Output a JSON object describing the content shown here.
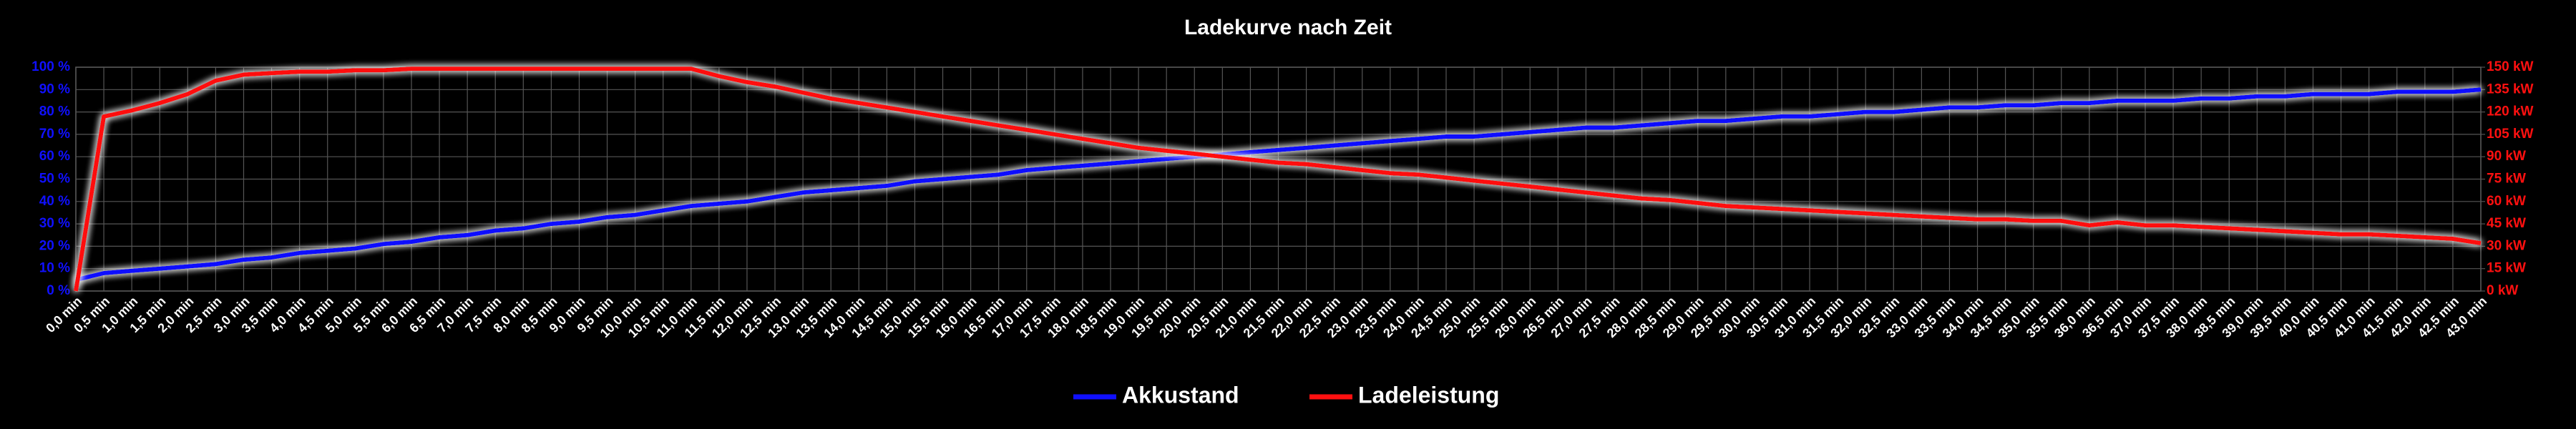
{
  "chart_data": {
    "type": "line",
    "title": "Ladekurve nach Zeit",
    "categories": [
      "0,0 min",
      "0,5 min",
      "1,0 min",
      "1,5 min",
      "2,0 min",
      "2,5 min",
      "3,0 min",
      "3,5 min",
      "4,0 min",
      "4,5 min",
      "5,0 min",
      "5,5 min",
      "6,0 min",
      "6,5 min",
      "7,0 min",
      "7,5 min",
      "8,0 min",
      "8,5 min",
      "9,0 min",
      "9,5 min",
      "10,0 min",
      "10,5 min",
      "11,0 min",
      "11,5 min",
      "12,0 min",
      "12,5 min",
      "13,0 min",
      "13,5 min",
      "14,0 min",
      "14,5 min",
      "15,0 min",
      "15,5 min",
      "16,0 min",
      "16,5 min",
      "17,0 min",
      "17,5 min",
      "18,0 min",
      "18,5 min",
      "19,0 min",
      "19,5 min",
      "20,0 min",
      "20,5 min",
      "21,0 min",
      "21,5 min",
      "22,0 min",
      "22,5 min",
      "23,0 min",
      "23,5 min",
      "24,0 min",
      "24,5 min",
      "25,0 min",
      "25,5 min",
      "26,0 min",
      "26,5 min",
      "27,0 min",
      "27,5 min",
      "28,0 min",
      "28,5 min",
      "29,0 min",
      "29,5 min",
      "30,0 min",
      "30,5 min",
      "31,0 min",
      "31,5 min",
      "32,0 min",
      "32,5 min",
      "33,0 min",
      "33,5 min",
      "34,0 min",
      "34,5 min",
      "35,0 min",
      "35,5 min",
      "36,0 min",
      "36,5 min",
      "37,0 min",
      "37,5 min",
      "38,0 min",
      "38,5 min",
      "39,0 min",
      "39,5 min",
      "40,0 min",
      "40,5 min",
      "41,0 min",
      "41,5 min",
      "42,0 min",
      "42,5 min",
      "43,0 min"
    ],
    "series": [
      {
        "name": "Akkustand",
        "color": "#1010ff",
        "values": [
          5,
          8,
          9,
          10,
          11,
          12,
          14,
          15,
          17,
          18,
          19,
          21,
          22,
          24,
          25,
          27,
          28,
          30,
          31,
          33,
          34,
          36,
          38,
          39,
          40,
          42,
          44,
          45,
          46,
          47,
          49,
          50,
          51,
          52,
          54,
          55,
          56,
          57,
          58,
          59,
          60,
          61,
          62,
          63,
          64,
          65,
          66,
          67,
          68,
          69,
          69,
          70,
          71,
          72,
          73,
          73,
          74,
          75,
          76,
          76,
          77,
          78,
          78,
          79,
          80,
          80,
          81,
          82,
          82,
          83,
          83,
          84,
          84,
          85,
          85,
          85,
          86,
          86,
          87,
          87,
          88,
          88,
          88,
          89,
          89,
          89,
          90
        ]
      },
      {
        "name": "Ladeleistung",
        "color": "#ff1010",
        "axis": "y2",
        "values": [
          0,
          117,
          121,
          126,
          132,
          141,
          145,
          146,
          147,
          147,
          148,
          148,
          149,
          149,
          149,
          149,
          149,
          149,
          149,
          149,
          149,
          149,
          149,
          144,
          140,
          137,
          133,
          129,
          126,
          123,
          120,
          117,
          114,
          111,
          108,
          105,
          102,
          99,
          96,
          94,
          92,
          90,
          88,
          86,
          85,
          83,
          81,
          79,
          78,
          76,
          74,
          72,
          70,
          68,
          66,
          64,
          62,
          61,
          59,
          57,
          56,
          55,
          54,
          53,
          52,
          51,
          50,
          49,
          48,
          48,
          47,
          47,
          44,
          46,
          44,
          44,
          43,
          42,
          41,
          40,
          39,
          38,
          38,
          37,
          36,
          35,
          32
        ]
      }
    ],
    "ylim": [
      0,
      100
    ],
    "yticks": [
      {
        "value": 0,
        "label": "0 %"
      },
      {
        "value": 10,
        "label": "10 %"
      },
      {
        "value": 20,
        "label": "20 %"
      },
      {
        "value": 30,
        "label": "30 %"
      },
      {
        "value": 40,
        "label": "40 %"
      },
      {
        "value": 50,
        "label": "50 %"
      },
      {
        "value": 60,
        "label": "60 %"
      },
      {
        "value": 70,
        "label": "70 %"
      },
      {
        "value": 80,
        "label": "80 %"
      },
      {
        "value": 90,
        "label": "90 %"
      },
      {
        "value": 100,
        "label": "100 %"
      }
    ],
    "y2lim": [
      0,
      150
    ],
    "y2ticks": [
      {
        "value": 0,
        "label": "0 kW"
      },
      {
        "value": 15,
        "label": "15 kW"
      },
      {
        "value": 30,
        "label": "30 kW"
      },
      {
        "value": 45,
        "label": "45 kW"
      },
      {
        "value": 60,
        "label": "60 kW"
      },
      {
        "value": 75,
        "label": "75 kW"
      },
      {
        "value": 90,
        "label": "90 kW"
      },
      {
        "value": 105,
        "label": "105 kW"
      },
      {
        "value": 120,
        "label": "120 kW"
      },
      {
        "value": 135,
        "label": "135 kW"
      },
      {
        "value": 150,
        "label": "150 kW"
      }
    ],
    "grid": true,
    "legend": "bottom"
  }
}
